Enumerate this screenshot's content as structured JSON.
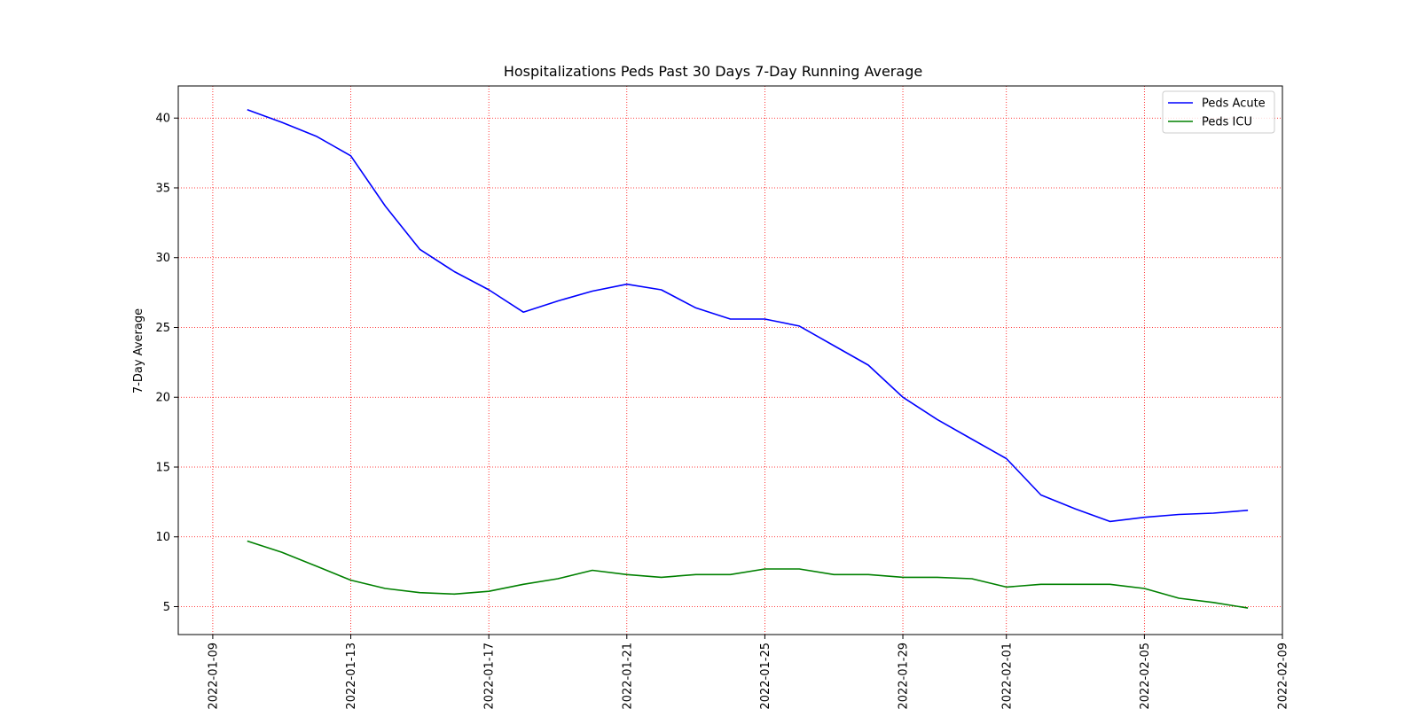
{
  "chart_data": {
    "type": "line",
    "title": "Hospitalizations Peds Past 30 Days 7-Day Running Average",
    "xlabel": "",
    "ylabel": "7-Day Average",
    "x_range": [
      "2022-01-08",
      "2022-02-09"
    ],
    "ylim": [
      3,
      42.3
    ],
    "grid": true,
    "legend_position": "top-right",
    "x_ticks": [
      "2022-01-09",
      "2022-01-13",
      "2022-01-17",
      "2022-01-21",
      "2022-01-25",
      "2022-01-29",
      "2022-02-01",
      "2022-02-05",
      "2022-02-09"
    ],
    "y_ticks": [
      5,
      10,
      15,
      20,
      25,
      30,
      35,
      40
    ],
    "x": [
      "2022-01-10",
      "2022-01-11",
      "2022-01-12",
      "2022-01-13",
      "2022-01-14",
      "2022-01-15",
      "2022-01-16",
      "2022-01-17",
      "2022-01-18",
      "2022-01-19",
      "2022-01-20",
      "2022-01-21",
      "2022-01-22",
      "2022-01-23",
      "2022-01-24",
      "2022-01-25",
      "2022-01-26",
      "2022-01-27",
      "2022-01-28",
      "2022-01-29",
      "2022-01-30",
      "2022-01-31",
      "2022-02-01",
      "2022-02-02",
      "2022-02-03",
      "2022-02-04",
      "2022-02-05",
      "2022-02-06",
      "2022-02-07",
      "2022-02-08"
    ],
    "series": [
      {
        "name": "Peds Acute",
        "color": "#0000ff",
        "values": [
          40.6,
          39.7,
          38.7,
          37.3,
          33.7,
          30.6,
          29.0,
          27.7,
          26.1,
          26.9,
          27.6,
          28.1,
          27.7,
          26.4,
          25.6,
          25.6,
          25.1,
          23.7,
          22.3,
          20.0,
          18.4,
          17.0,
          15.6,
          13.0,
          12.0,
          11.1,
          11.4,
          11.6,
          11.7,
          11.9
        ]
      },
      {
        "name": "Peds ICU",
        "color": "#008000",
        "values": [
          9.7,
          8.9,
          7.9,
          6.9,
          6.3,
          6.0,
          5.9,
          6.1,
          6.6,
          7.0,
          7.6,
          7.3,
          7.1,
          7.3,
          7.3,
          7.7,
          7.7,
          7.3,
          7.3,
          7.1,
          7.1,
          7.0,
          6.4,
          6.6,
          6.6,
          6.6,
          6.3,
          5.6,
          5.3,
          4.9
        ]
      }
    ]
  }
}
